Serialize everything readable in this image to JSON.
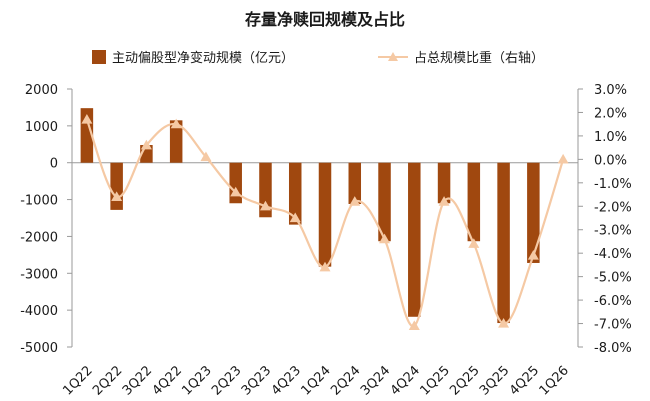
{
  "chart_data": {
    "type": "bar",
    "title": "存量净赎回规模及占比",
    "categories": [
      "1Q22",
      "2Q22",
      "3Q22",
      "4Q22",
      "1Q23",
      "2Q23",
      "3Q23",
      "4Q23",
      "1Q24",
      "2Q24",
      "3Q24",
      "4Q24",
      "1Q25",
      "2Q25",
      "3Q25",
      "4Q25",
      "1Q26"
    ],
    "series": [
      {
        "name": "主动偏股型净变动规模（亿元）",
        "type": "bar",
        "axis": "left",
        "color": "#a0480f",
        "values": [
          1480,
          -1280,
          480,
          1150,
          0,
          -1100,
          -1480,
          -1680,
          -2820,
          -1120,
          -2130,
          -4180,
          -1100,
          -2130,
          -4350,
          -2720,
          0
        ]
      },
      {
        "name": "占总规模比重（右轴）",
        "type": "line",
        "axis": "right",
        "color": "#f5c9a4",
        "values": [
          1.7,
          -1.6,
          0.6,
          1.5,
          0.1,
          -1.4,
          -2.0,
          -2.5,
          -4.6,
          -1.8,
          -3.4,
          -7.1,
          -1.8,
          -3.6,
          -7.0,
          -4.1,
          0.0
        ]
      }
    ],
    "yleft": {
      "lim": [
        -5000,
        2000
      ],
      "ticks": [
        "2000",
        "1000",
        "0",
        "-1000",
        "-2000",
        "-3000",
        "-4000",
        "-5000"
      ]
    },
    "yright": {
      "lim": [
        -8.0,
        3.0
      ],
      "ticks": [
        "3.0%",
        "2.0%",
        "1.0%",
        "0.0%",
        "-1.0%",
        "-2.0%",
        "-3.0%",
        "-4.0%",
        "-5.0%",
        "-6.0%",
        "-7.0%",
        "-8.0%"
      ]
    },
    "legend_position": "top",
    "grid": false
  }
}
